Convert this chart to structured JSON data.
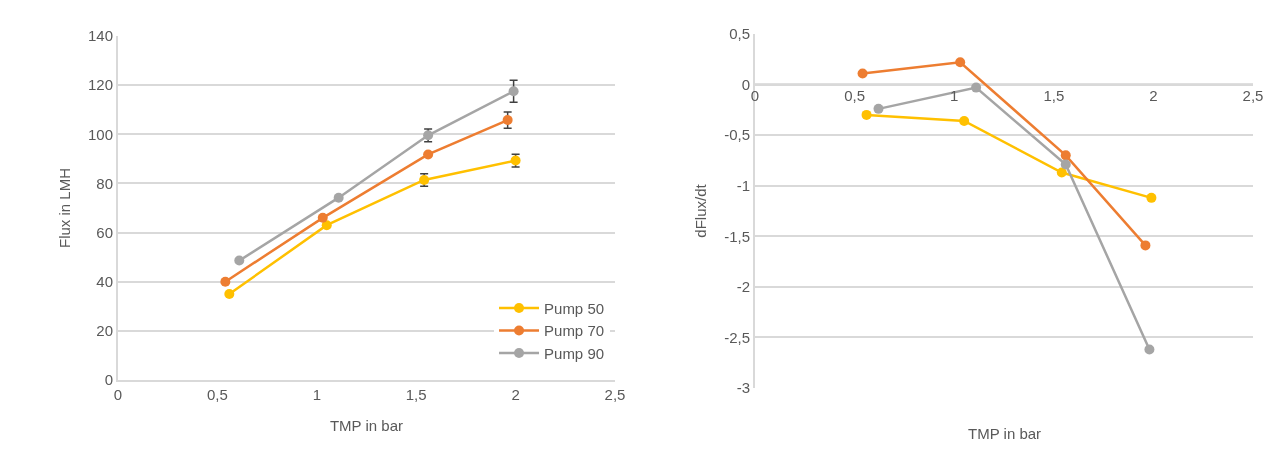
{
  "chart_data": [
    {
      "type": "line",
      "xlabel": "TMP in bar",
      "ylabel": "Flux in LMH",
      "xlim": [
        0,
        2.5
      ],
      "xticks": [
        0,
        {
          "value": 0.5,
          "label": "0,5"
        },
        1,
        {
          "value": 1.5,
          "label": "1,5"
        },
        2,
        {
          "value": 2.5,
          "label": "2,5"
        }
      ],
      "ylim": [
        0,
        140
      ],
      "yticks": [
        0,
        20,
        40,
        60,
        80,
        100,
        120,
        140
      ],
      "grid": "y",
      "legend": "bottom right",
      "marker": "circle",
      "line_style": "solid",
      "series": [
        {
          "name": "Pump 50",
          "color": "#ffc000",
          "x": [
            0.56,
            1.05,
            1.54,
            2.0
          ],
          "values": [
            35,
            63,
            81.4,
            89.3
          ],
          "errors": [
            null,
            null,
            2.5,
            2.6
          ]
        },
        {
          "name": "Pump 70",
          "color": "#ed7d31",
          "x": [
            0.54,
            1.03,
            1.56,
            1.96
          ],
          "values": [
            40,
            66,
            91.8,
            105.8
          ],
          "errors": [
            null,
            null,
            null,
            3.3
          ]
        },
        {
          "name": "Pump 90",
          "color": "#a5a5a5",
          "x": [
            0.61,
            1.11,
            1.56,
            1.99
          ],
          "values": [
            48.6,
            74.2,
            99.6,
            117.5
          ],
          "errors": [
            null,
            null,
            2.6,
            4.5
          ]
        }
      ]
    },
    {
      "type": "line",
      "xlabel": "TMP in bar",
      "ylabel": "dFlux/dt",
      "xlim": [
        0,
        2.5
      ],
      "xticks": [
        0,
        {
          "value": 0.5,
          "label": "0,5"
        },
        1,
        {
          "value": 1.5,
          "label": "1,5"
        },
        2,
        {
          "value": 2.5,
          "label": "2,5"
        }
      ],
      "ylim": [
        -3,
        0.5
      ],
      "yticks": [
        -3,
        {
          "value": -2.5,
          "label": "-2,5"
        },
        -2,
        {
          "value": -1.5,
          "label": "-1,5"
        },
        -1,
        {
          "value": -0.5,
          "label": "-0,5"
        },
        0,
        {
          "value": 0.5,
          "label": "0,5"
        }
      ],
      "grid": "y",
      "marker": "circle",
      "line_style": "solid",
      "series": [
        {
          "color": "#ffc000",
          "x": [
            0.56,
            1.05,
            1.54,
            1.99
          ],
          "values": [
            -0.3,
            -0.36,
            -0.87,
            -1.12
          ]
        },
        {
          "color": "#ed7d31",
          "x": [
            0.54,
            1.03,
            1.56,
            1.96
          ],
          "values": [
            0.11,
            0.22,
            -0.7,
            -1.59
          ]
        },
        {
          "color": "#a5a5a5",
          "x": [
            0.62,
            1.11,
            1.56,
            1.98
          ],
          "values": [
            -0.24,
            -0.03,
            -0.79,
            -2.62
          ]
        }
      ]
    }
  ]
}
